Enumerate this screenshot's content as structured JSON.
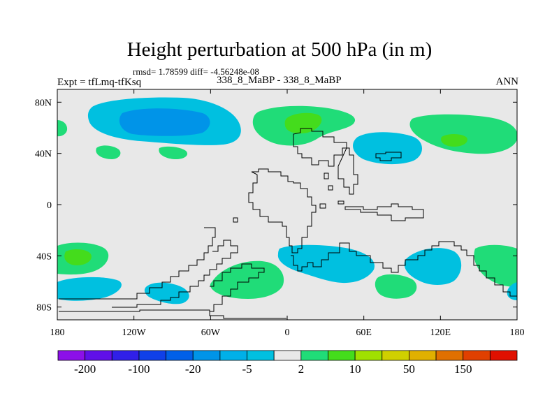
{
  "title": "Height perturbation at 500 hPa (in m)",
  "stats": "rmsd= 1.78599 diff= -4.56248e-08",
  "experiment": "Expt = tfLmq-tfKsq",
  "subtitle": "338_8_MaBP - 338_8_MaBP",
  "season": "ANN",
  "colors": {
    "background": "#e8e8e8",
    "light_blue": "#00c0e0",
    "mid_blue": "#0094e8",
    "light_green": "#20dc78",
    "mid_green": "#44dc1c",
    "coast": "#000000"
  },
  "axes": {
    "lat_ticks": [
      "80N",
      "40N",
      "0",
      "40S",
      "80S"
    ],
    "lat_values": [
      80,
      40,
      0,
      -40,
      -80
    ],
    "lon_ticks": [
      "180",
      "120W",
      "60W",
      "0",
      "60E",
      "120E",
      "180"
    ],
    "lon_values": [
      -180,
      -120,
      -60,
      0,
      60,
      120,
      180
    ],
    "lon_range": [
      -180,
      180
    ],
    "lat_range": [
      -90,
      90
    ]
  },
  "colorbar": {
    "colors": [
      "#8c10e8",
      "#6010e8",
      "#3020e8",
      "#1040e8",
      "#0060e8",
      "#0094e8",
      "#00b0e8",
      "#00c0e0",
      "#e8e8e8",
      "#20dc78",
      "#44dc1c",
      "#a0e000",
      "#d0d000",
      "#e0b000",
      "#e07000",
      "#e04000",
      "#e01000"
    ],
    "labels": [
      {
        "text": "-200",
        "index": 1
      },
      {
        "text": "-100",
        "index": 3
      },
      {
        "text": "-20",
        "index": 5
      },
      {
        "text": "-5",
        "index": 7
      },
      {
        "text": "2",
        "index": 9
      },
      {
        "text": "10",
        "index": 11
      },
      {
        "text": "50",
        "index": 13
      },
      {
        "text": "150",
        "index": 15
      }
    ]
  }
}
